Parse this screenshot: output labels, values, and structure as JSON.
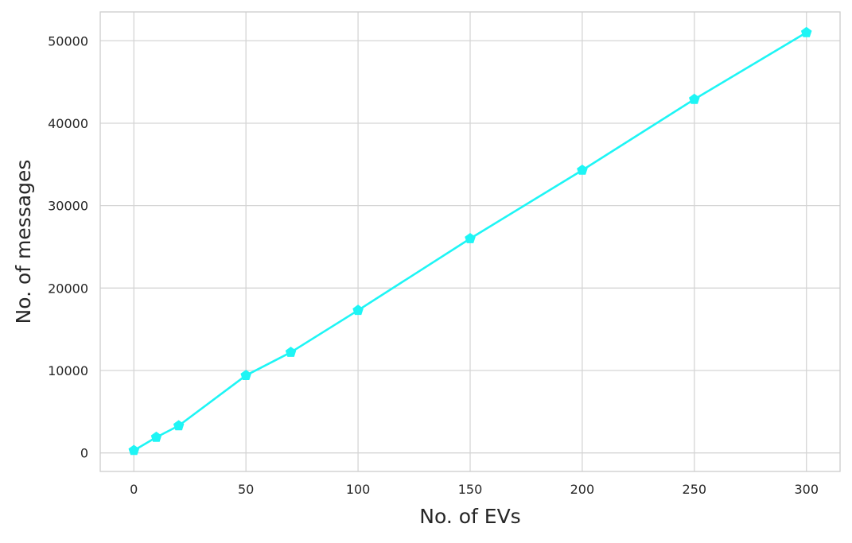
{
  "chart_data": {
    "type": "line",
    "title": "",
    "xlabel": "No. of EVs",
    "ylabel": "No. of messages",
    "xlim": [
      -15,
      315
    ],
    "ylim": [
      -2250,
      53500
    ],
    "xticks": [
      0,
      50,
      100,
      150,
      200,
      250,
      300
    ],
    "yticks": [
      0,
      10000,
      20000,
      30000,
      40000,
      50000
    ],
    "xtick_labels": [
      "0",
      "50",
      "100",
      "150",
      "200",
      "250",
      "300"
    ],
    "ytick_labels": [
      "0",
      "10000",
      "20000",
      "30000",
      "40000",
      "50000"
    ],
    "grid": true,
    "legend": "none",
    "series": [
      {
        "color": "#1ef5f5",
        "marker": "pentagon",
        "x": [
          0,
          10,
          20,
          50,
          70,
          100,
          150,
          200,
          250,
          300
        ],
        "y": [
          300,
          1900,
          3300,
          9400,
          12200,
          17300,
          26000,
          34300,
          42900,
          51000
        ]
      }
    ]
  }
}
